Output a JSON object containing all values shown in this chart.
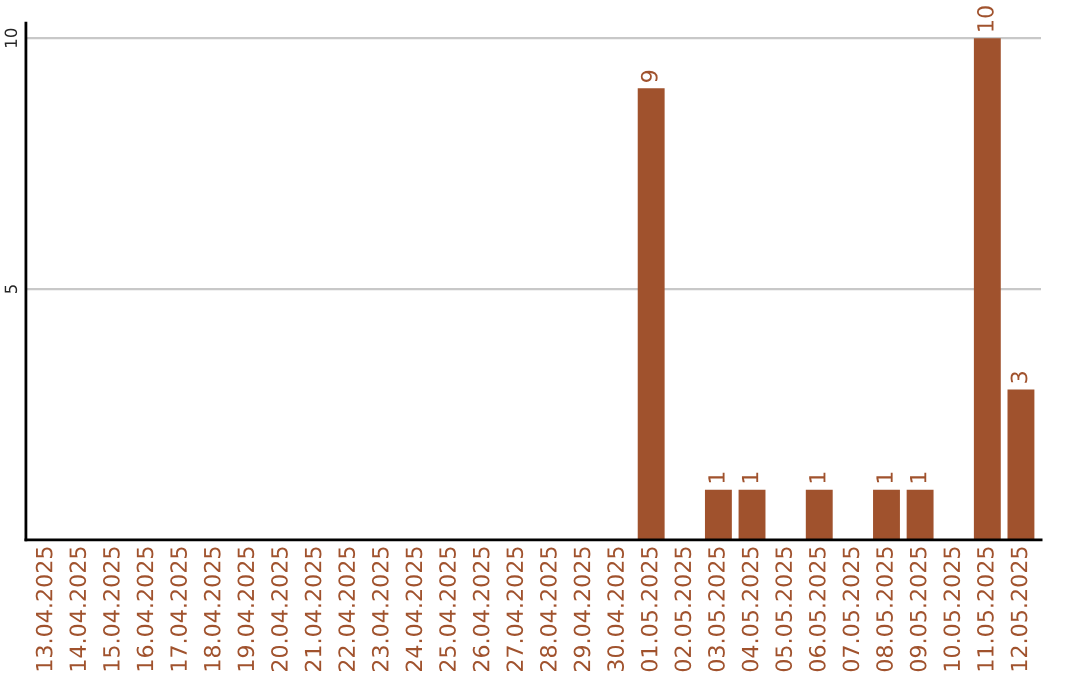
{
  "chart_data": {
    "type": "bar",
    "categories": [
      "13.04.2025",
      "14.04.2025",
      "15.04.2025",
      "16.04.2025",
      "17.04.2025",
      "18.04.2025",
      "19.04.2025",
      "20.04.2025",
      "21.04.2025",
      "22.04.2025",
      "23.04.2025",
      "24.04.2025",
      "25.04.2025",
      "26.04.2025",
      "27.04.2025",
      "28.04.2025",
      "29.04.2025",
      "30.04.2025",
      "01.05.2025",
      "02.05.2025",
      "03.05.2025",
      "04.05.2025",
      "05.05.2025",
      "06.05.2025",
      "07.05.2025",
      "08.05.2025",
      "09.05.2025",
      "10.05.2025",
      "11.05.2025",
      "12.05.2025"
    ],
    "values": [
      0,
      0,
      0,
      0,
      0,
      0,
      0,
      0,
      0,
      0,
      0,
      0,
      0,
      0,
      0,
      0,
      0,
      0,
      9,
      0,
      1,
      1,
      0,
      1,
      0,
      1,
      1,
      0,
      10,
      3
    ],
    "value_labels": [
      null,
      null,
      null,
      null,
      null,
      null,
      null,
      null,
      null,
      null,
      null,
      null,
      null,
      null,
      null,
      null,
      null,
      null,
      "9",
      null,
      "1",
      "1",
      null,
      "1",
      null,
      "1",
      "1",
      null,
      "10",
      "3"
    ],
    "color": "#a0522d",
    "ylim": [
      0,
      10.3
    ],
    "yticks": [
      5,
      10
    ],
    "grid": "y"
  }
}
